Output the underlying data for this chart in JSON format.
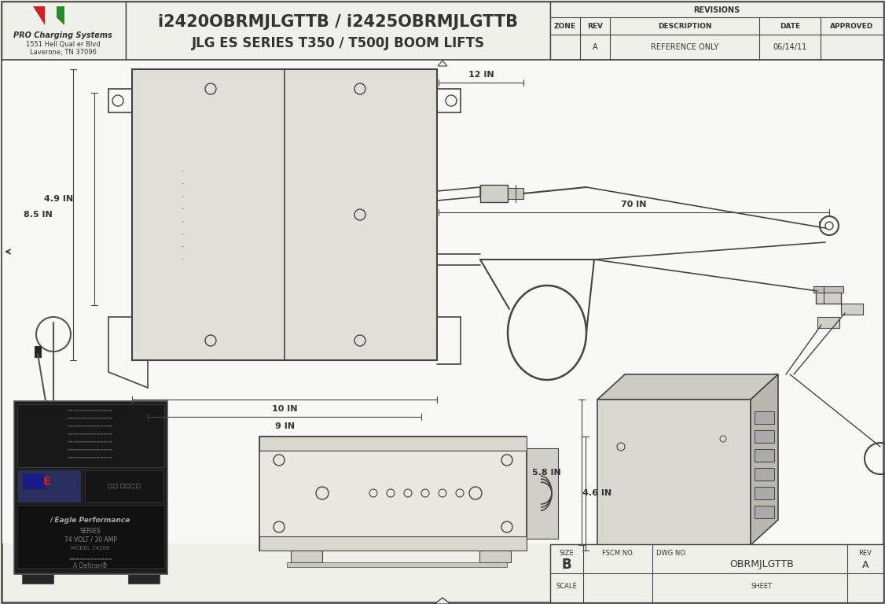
{
  "bg_color": "#f0f0ea",
  "lc": "#444444",
  "title_line1": "i2420OBRMJLGTTB / i2425OBRMJLGTTB",
  "title_line2": "JLG ES SERIES T350 / T500J BOOM LIFTS",
  "company_name": "PRO Charging Systems",
  "company_addr1": "1551 Hell Qual er Blvd",
  "company_addr2": "Laverone, TN 37096",
  "rev_table_headers": [
    "ZONE",
    "REV",
    "DESCRIPTION",
    "DATE",
    "APPROVED"
  ],
  "rev_row": [
    "",
    "A",
    "REFERENCE ONLY",
    "06/14/11",
    ""
  ],
  "dim_12in": "12 IN",
  "dim_70in": "70 IN",
  "dim_49in": "4.9 IN",
  "dim_85in": "8.5 IN",
  "dim_10in": "10 IN",
  "dim_9in": "9 IN",
  "dim_58in": "5.8 IN",
  "dim_46in": "4.6 IN",
  "title_block_size": "B",
  "title_block_fscm": "",
  "title_block_dwg": "OBRMJLGTTB",
  "title_block_rev": "A",
  "title_block_scale": "",
  "title_block_sheet": ""
}
